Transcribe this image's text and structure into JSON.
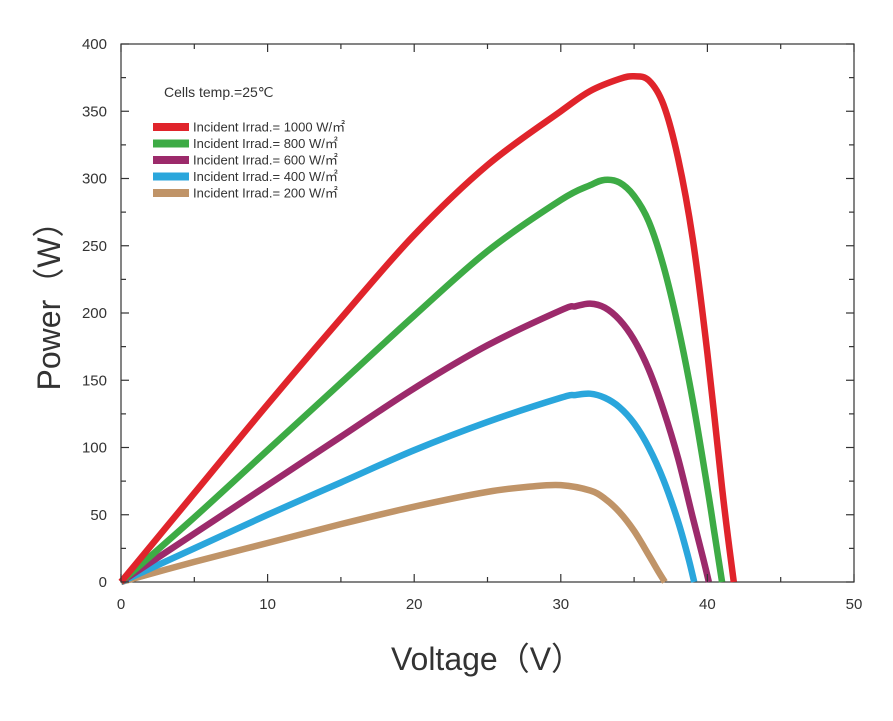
{
  "chart_data": {
    "type": "line",
    "title": "",
    "xlabel": "Voltage（V）",
    "ylabel": "Power（W）",
    "xlim": [
      0,
      50
    ],
    "ylim": [
      0,
      400
    ],
    "xticks": [
      0,
      10,
      20,
      30,
      40,
      50
    ],
    "yticks": [
      0,
      50,
      100,
      150,
      200,
      250,
      300,
      350,
      400
    ],
    "grid": false,
    "annotation": "Cells temp.=25℃",
    "legend_position": "top-left",
    "series": [
      {
        "name": "Incident Irrad.= 1000 W/㎡",
        "color": "#e0242b",
        "x": [
          0,
          5,
          10,
          15,
          20,
          25,
          30,
          32,
          34,
          35,
          36,
          37,
          38,
          39,
          40,
          41,
          41.5,
          41.8
        ],
        "y": [
          0,
          66,
          132,
          196,
          258,
          310,
          350,
          365,
          374,
          376,
          373,
          355,
          315,
          255,
          170,
          70,
          25,
          0
        ]
      },
      {
        "name": "Incident Irrad.= 800 W/㎡",
        "color": "#3dab45",
        "x": [
          0,
          5,
          10,
          15,
          20,
          25,
          30,
          32,
          33,
          34,
          35,
          36,
          37,
          38,
          39,
          40,
          40.5,
          41
        ],
        "y": [
          0,
          48,
          98,
          148,
          198,
          246,
          284,
          295,
          299,
          297,
          287,
          268,
          235,
          190,
          135,
          70,
          35,
          0
        ]
      },
      {
        "name": "Incident Irrad.= 600 W/㎡",
        "color": "#9c2a6b",
        "x": [
          0,
          5,
          10,
          15,
          20,
          25,
          30,
          31,
          32,
          33,
          34,
          35,
          36,
          37,
          38,
          39,
          39.7,
          40.1
        ],
        "y": [
          0,
          36,
          72,
          108,
          144,
          176,
          202,
          205,
          207,
          204,
          195,
          180,
          158,
          128,
          92,
          48,
          18,
          0
        ]
      },
      {
        "name": "Incident Irrad.= 400 W/㎡",
        "color": "#2aa6dc",
        "x": [
          0,
          5,
          10,
          15,
          20,
          25,
          30,
          31,
          32,
          33,
          34,
          35,
          36,
          37,
          38,
          38.7,
          39.1
        ],
        "y": [
          0,
          25,
          50,
          74,
          98,
          119,
          137,
          139,
          140,
          137,
          130,
          118,
          100,
          76,
          45,
          18,
          0
        ]
      },
      {
        "name": "Incident Irrad.= 200 W/㎡",
        "color": "#c09468",
        "x": [
          0,
          5,
          10,
          15,
          20,
          25,
          28,
          30,
          32,
          33,
          34,
          35,
          36,
          36.7,
          37.1
        ],
        "y": [
          0,
          15,
          29,
          43,
          56,
          67,
          71,
          72,
          68,
          62,
          52,
          38,
          20,
          7,
          0
        ]
      }
    ]
  }
}
